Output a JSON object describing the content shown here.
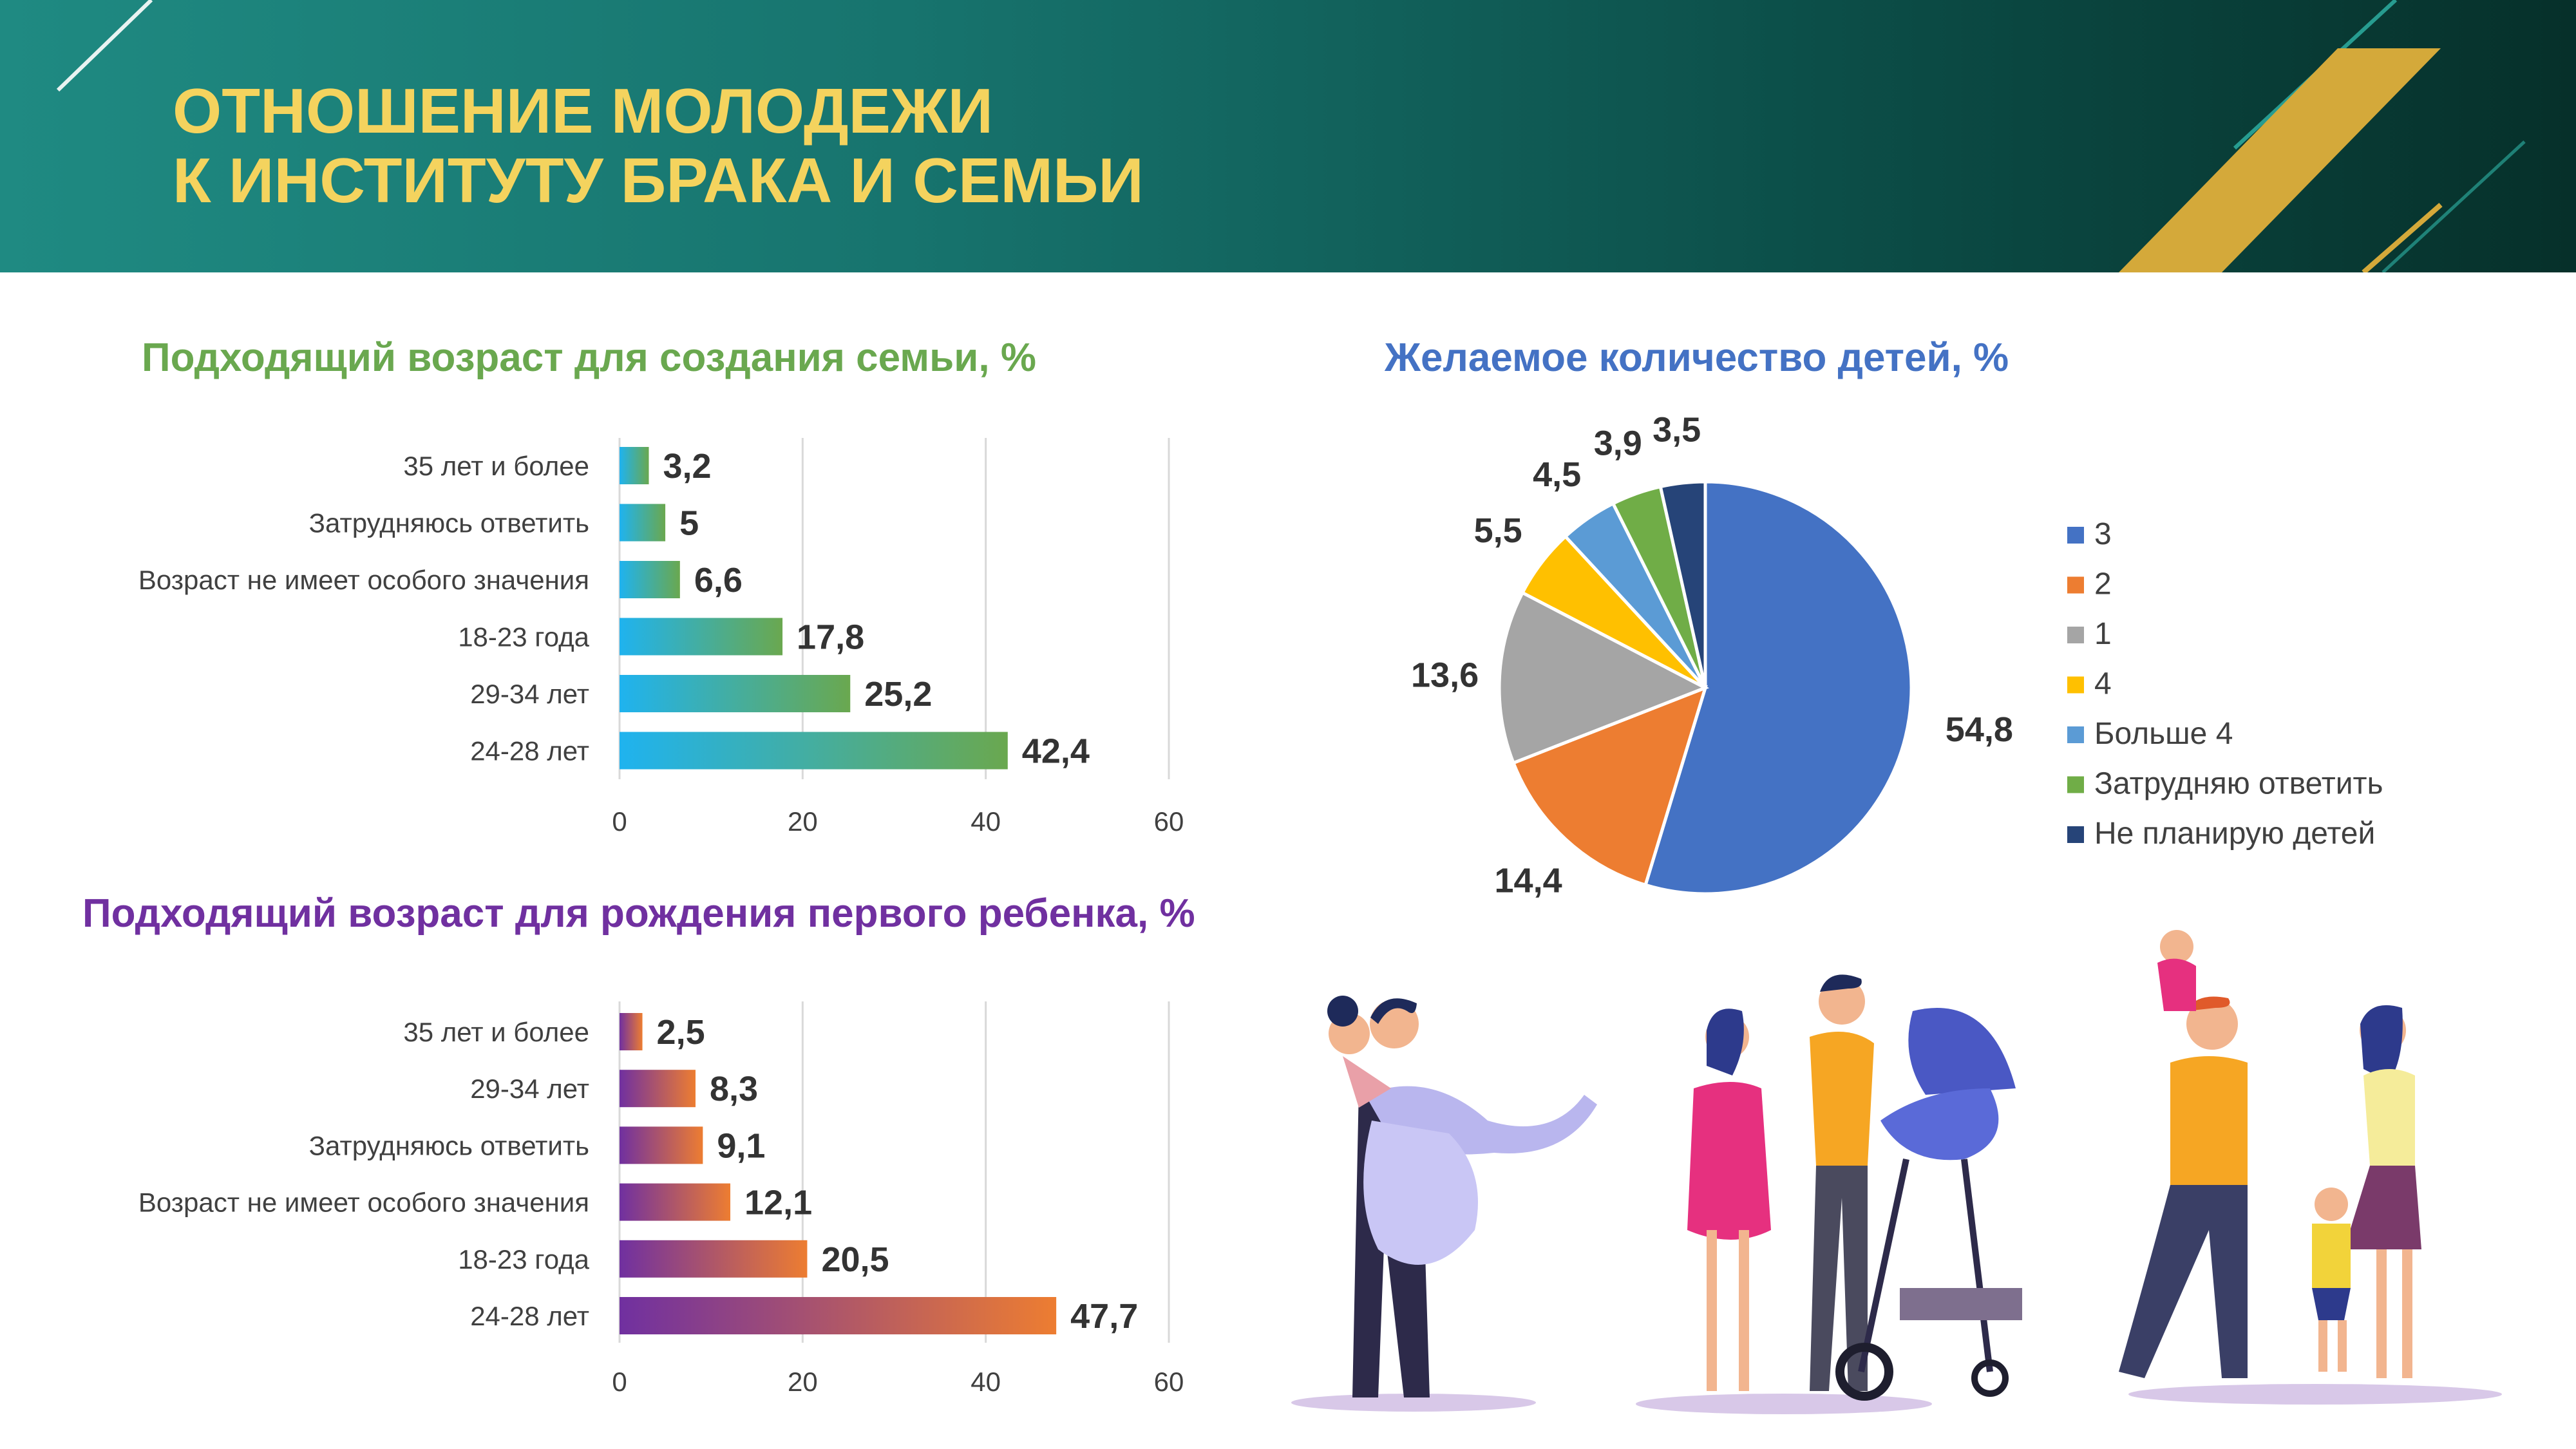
{
  "header": {
    "title_line1": "ОТНОШЕНИЕ МОЛОДЕЖИ",
    "title_line2": "К ИНСТИТУТУ БРАКА И СЕМЬИ"
  },
  "colors": {
    "header_start": "#1f8a82",
    "header_end": "#06302a",
    "title": "#f4d35e",
    "gold_stripe": "#d4a93a",
    "chart1_title": "#6aa84f",
    "chart2_title": "#7030a0",
    "chart3_title": "#4472c4",
    "chart1_gradient": [
      "#1fb3ef",
      "#6aa84f"
    ],
    "chart2_gradient": [
      "#7030a0",
      "#ed7d31"
    ]
  },
  "chart_data": [
    {
      "type": "bar",
      "orientation": "horizontal",
      "title": "Подходящий возраст для создания семьи, %",
      "categories": [
        "35 лет и более",
        "Затрудняюсь ответить",
        "Возраст не имеет особого значения",
        "18-23 года",
        "29-34 лет",
        "24-28 лет"
      ],
      "values": [
        3.2,
        5,
        6.6,
        17.8,
        25.2,
        42.4
      ],
      "value_labels": [
        "3,2",
        "5",
        "6,6",
        "17,8",
        "25,2",
        "42,4"
      ],
      "xlim": [
        0,
        60
      ],
      "ticks": [
        0,
        20,
        40,
        60
      ],
      "grid": true
    },
    {
      "type": "bar",
      "orientation": "horizontal",
      "title": "Подходящий возраст для рождения первого ребенка, %",
      "categories": [
        "35 лет и более",
        "29-34 лет",
        "Затрудняюсь ответить",
        "Возраст не имеет особого значения",
        "18-23 года",
        "24-28 лет"
      ],
      "values": [
        2.5,
        8.3,
        9.1,
        12.1,
        20.5,
        47.7
      ],
      "value_labels": [
        "2,5",
        "8,3",
        "9,1",
        "12,1",
        "20,5",
        "47,7"
      ],
      "xlim": [
        0,
        60
      ],
      "ticks": [
        0,
        20,
        40,
        60
      ],
      "grid": true
    },
    {
      "type": "pie",
      "title": "Желаемое количество детей, %",
      "legend_position": "right",
      "slices": [
        {
          "label": "3",
          "value": 54.8,
          "value_label": "54,8",
          "color": "#4472c4"
        },
        {
          "label": "2",
          "value": 14.4,
          "value_label": "14,4",
          "color": "#ed7d31"
        },
        {
          "label": "1",
          "value": 13.6,
          "value_label": "13,6",
          "color": "#a5a5a5"
        },
        {
          "label": "4",
          "value": 5.5,
          "value_label": "5,5",
          "color": "#ffc000"
        },
        {
          "label": "Больше 4",
          "value": 4.5,
          "value_label": "4,5",
          "color": "#5b9bd5"
        },
        {
          "label": "Затрудняю ответить",
          "value": 3.9,
          "value_label": "3,9",
          "color": "#70ad47"
        },
        {
          "label": "Не планирую детей",
          "value": 3.5,
          "value_label": "3,5",
          "color": "#264478"
        }
      ]
    }
  ],
  "illustrations": [
    "wedding-couple",
    "couple-with-stroller",
    "family-with-children"
  ]
}
